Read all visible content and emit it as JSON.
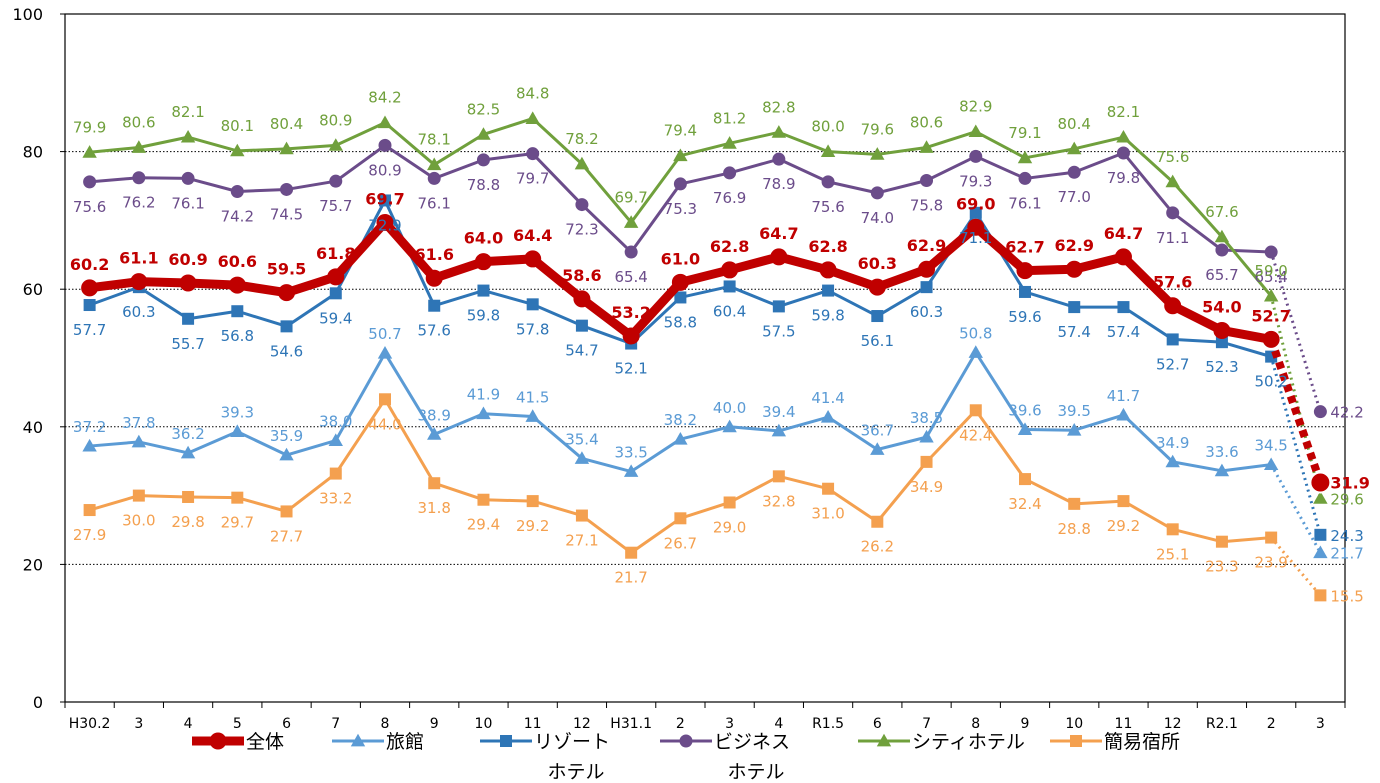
{
  "chart_data": {
    "type": "line",
    "title": "",
    "xlabel": "",
    "ylabel": "",
    "ylim": [
      0,
      100
    ],
    "yticks": [
      0,
      20,
      40,
      60,
      80,
      100
    ],
    "grid": "horizontal-dotted",
    "legend_position": "bottom",
    "categories": [
      "H30.2",
      "3",
      "4",
      "5",
      "6",
      "7",
      "8",
      "9",
      "10",
      "11",
      "12",
      "H31.1",
      "2",
      "3",
      "4",
      "R1.5",
      "6",
      "7",
      "8",
      "9",
      "10",
      "11",
      "12",
      "R2.1",
      "2",
      "3"
    ],
    "series": [
      {
        "name": "全体",
        "color": "#c00000",
        "marker": "circle",
        "values": [
          60.2,
          61.1,
          60.9,
          60.6,
          59.5,
          61.8,
          69.7,
          61.6,
          64.0,
          64.4,
          58.6,
          53.2,
          61.0,
          62.8,
          64.7,
          62.8,
          60.3,
          62.9,
          69.0,
          62.7,
          62.9,
          64.7,
          57.6,
          54.0,
          52.7,
          31.9
        ],
        "labels": [
          "60.2",
          "61.1",
          "60.9",
          "60.6",
          "59.5",
          "61.8",
          "69.7",
          "61.6",
          "64.0",
          "64.4",
          "58.6",
          "53.2",
          "61.0",
          "62.8",
          "64.7",
          "62.8",
          "60.3",
          "62.9",
          "69.0",
          "62.7",
          "62.9",
          "64.7",
          "57.6",
          "54.0",
          "52.7",
          "31.9"
        ]
      },
      {
        "name": "旅館",
        "color": "#5b9bd5",
        "marker": "triangle",
        "values": [
          37.2,
          37.8,
          36.2,
          39.3,
          35.9,
          38.0,
          50.7,
          38.9,
          41.9,
          41.5,
          35.4,
          33.5,
          38.2,
          40.0,
          39.4,
          41.4,
          36.7,
          38.5,
          50.8,
          39.6,
          39.5,
          41.7,
          34.9,
          33.6,
          34.5,
          21.7
        ],
        "labels": [
          "37.2",
          "37.8",
          "36.2",
          "39.3",
          "35.9",
          "38.0",
          "50.7",
          "38.9",
          "41.9",
          "41.5",
          "35.4",
          "33.5",
          "38.2",
          "40.0",
          "39.4",
          "41.4",
          "36.7",
          "38.5",
          "50.8",
          "39.6",
          "39.5",
          "41.7",
          "34.9",
          "33.6",
          "34.5",
          "21.7"
        ]
      },
      {
        "name": "リゾートホテル",
        "legend_lines": [
          "リゾート",
          "ホテル"
        ],
        "color": "#2e75b6",
        "marker": "square",
        "values": [
          57.7,
          60.3,
          55.7,
          56.8,
          54.6,
          59.4,
          72.9,
          57.6,
          59.8,
          57.8,
          54.7,
          52.1,
          58.8,
          60.4,
          57.5,
          59.8,
          56.1,
          60.3,
          71.1,
          59.6,
          57.4,
          57.4,
          52.7,
          52.3,
          50.2,
          24.3
        ],
        "labels": [
          "57.7",
          "60.3",
          "55.7",
          "56.8",
          "54.6",
          "59.4",
          "72.9",
          "57.6",
          "59.8",
          "57.8",
          "54.7",
          "52.1",
          "58.8",
          "60.4",
          "57.5",
          "59.8",
          "56.1",
          "60.3",
          "71.1",
          "59.6",
          "57.4",
          "57.4",
          "52.7",
          "52.3",
          "50.2",
          "24.3"
        ]
      },
      {
        "name": "ビジネスホテル",
        "legend_lines": [
          "ビジネス",
          "ホテル"
        ],
        "color": "#6b4c8a",
        "marker": "circle",
        "values": [
          75.6,
          76.2,
          76.1,
          74.2,
          74.5,
          75.7,
          80.9,
          76.1,
          78.8,
          79.7,
          72.3,
          65.4,
          75.3,
          76.9,
          78.9,
          75.6,
          74.0,
          75.8,
          79.3,
          76.1,
          77.0,
          79.8,
          71.1,
          65.7,
          65.4,
          42.2
        ],
        "labels": [
          "75.6",
          "76.2",
          "76.1",
          "74.2",
          "74.5",
          "75.7",
          "80.9",
          "76.1",
          "78.8",
          "79.7",
          "72.3",
          "65.4",
          "75.3",
          "76.9",
          "78.9",
          "75.6",
          "74.0",
          "75.8",
          "79.3",
          "76.1",
          "77.0",
          "79.8",
          "71.1",
          "65.7",
          "65.4",
          "42.2"
        ]
      },
      {
        "name": "シティホテル",
        "color": "#70a03c",
        "marker": "triangle",
        "values": [
          79.9,
          80.6,
          82.1,
          80.1,
          80.4,
          80.9,
          84.2,
          78.1,
          82.5,
          84.8,
          78.2,
          69.7,
          79.4,
          81.2,
          82.8,
          80.0,
          79.6,
          80.6,
          82.9,
          79.1,
          80.4,
          82.1,
          75.6,
          67.6,
          59.0,
          29.6
        ],
        "labels": [
          "79.9",
          "80.6",
          "82.1",
          "80.1",
          "80.4",
          "80.9",
          "84.2",
          "78.1",
          "82.5",
          "84.8",
          "78.2",
          "69.7",
          "79.4",
          "81.2",
          "82.8",
          "80.0",
          "79.6",
          "80.6",
          "82.9",
          "79.1",
          "80.4",
          "82.1",
          "75.6",
          "67.6",
          "59.0",
          "29.6"
        ]
      },
      {
        "name": "簡易宿所",
        "color": "#f4a04f",
        "marker": "square",
        "values": [
          27.9,
          30.0,
          29.8,
          29.7,
          27.7,
          33.2,
          44.0,
          31.8,
          29.4,
          29.2,
          27.1,
          21.7,
          26.7,
          29.0,
          32.8,
          31.0,
          26.2,
          34.9,
          42.4,
          32.4,
          28.8,
          29.2,
          25.1,
          23.3,
          23.9,
          15.5
        ],
        "labels": [
          "27.9",
          "30.0",
          "29.8",
          "29.7",
          "27.7",
          "33.2",
          "44.0",
          "31.8",
          "29.4",
          "29.2",
          "27.1",
          "21.7",
          "26.7",
          "29.0",
          "32.8",
          "31.0",
          "26.2",
          "34.9",
          "42.4",
          "32.4",
          "28.8",
          "29.2",
          "25.1",
          "23.3",
          "23.9",
          "15.5"
        ]
      }
    ],
    "dotted_last_segment": true
  }
}
